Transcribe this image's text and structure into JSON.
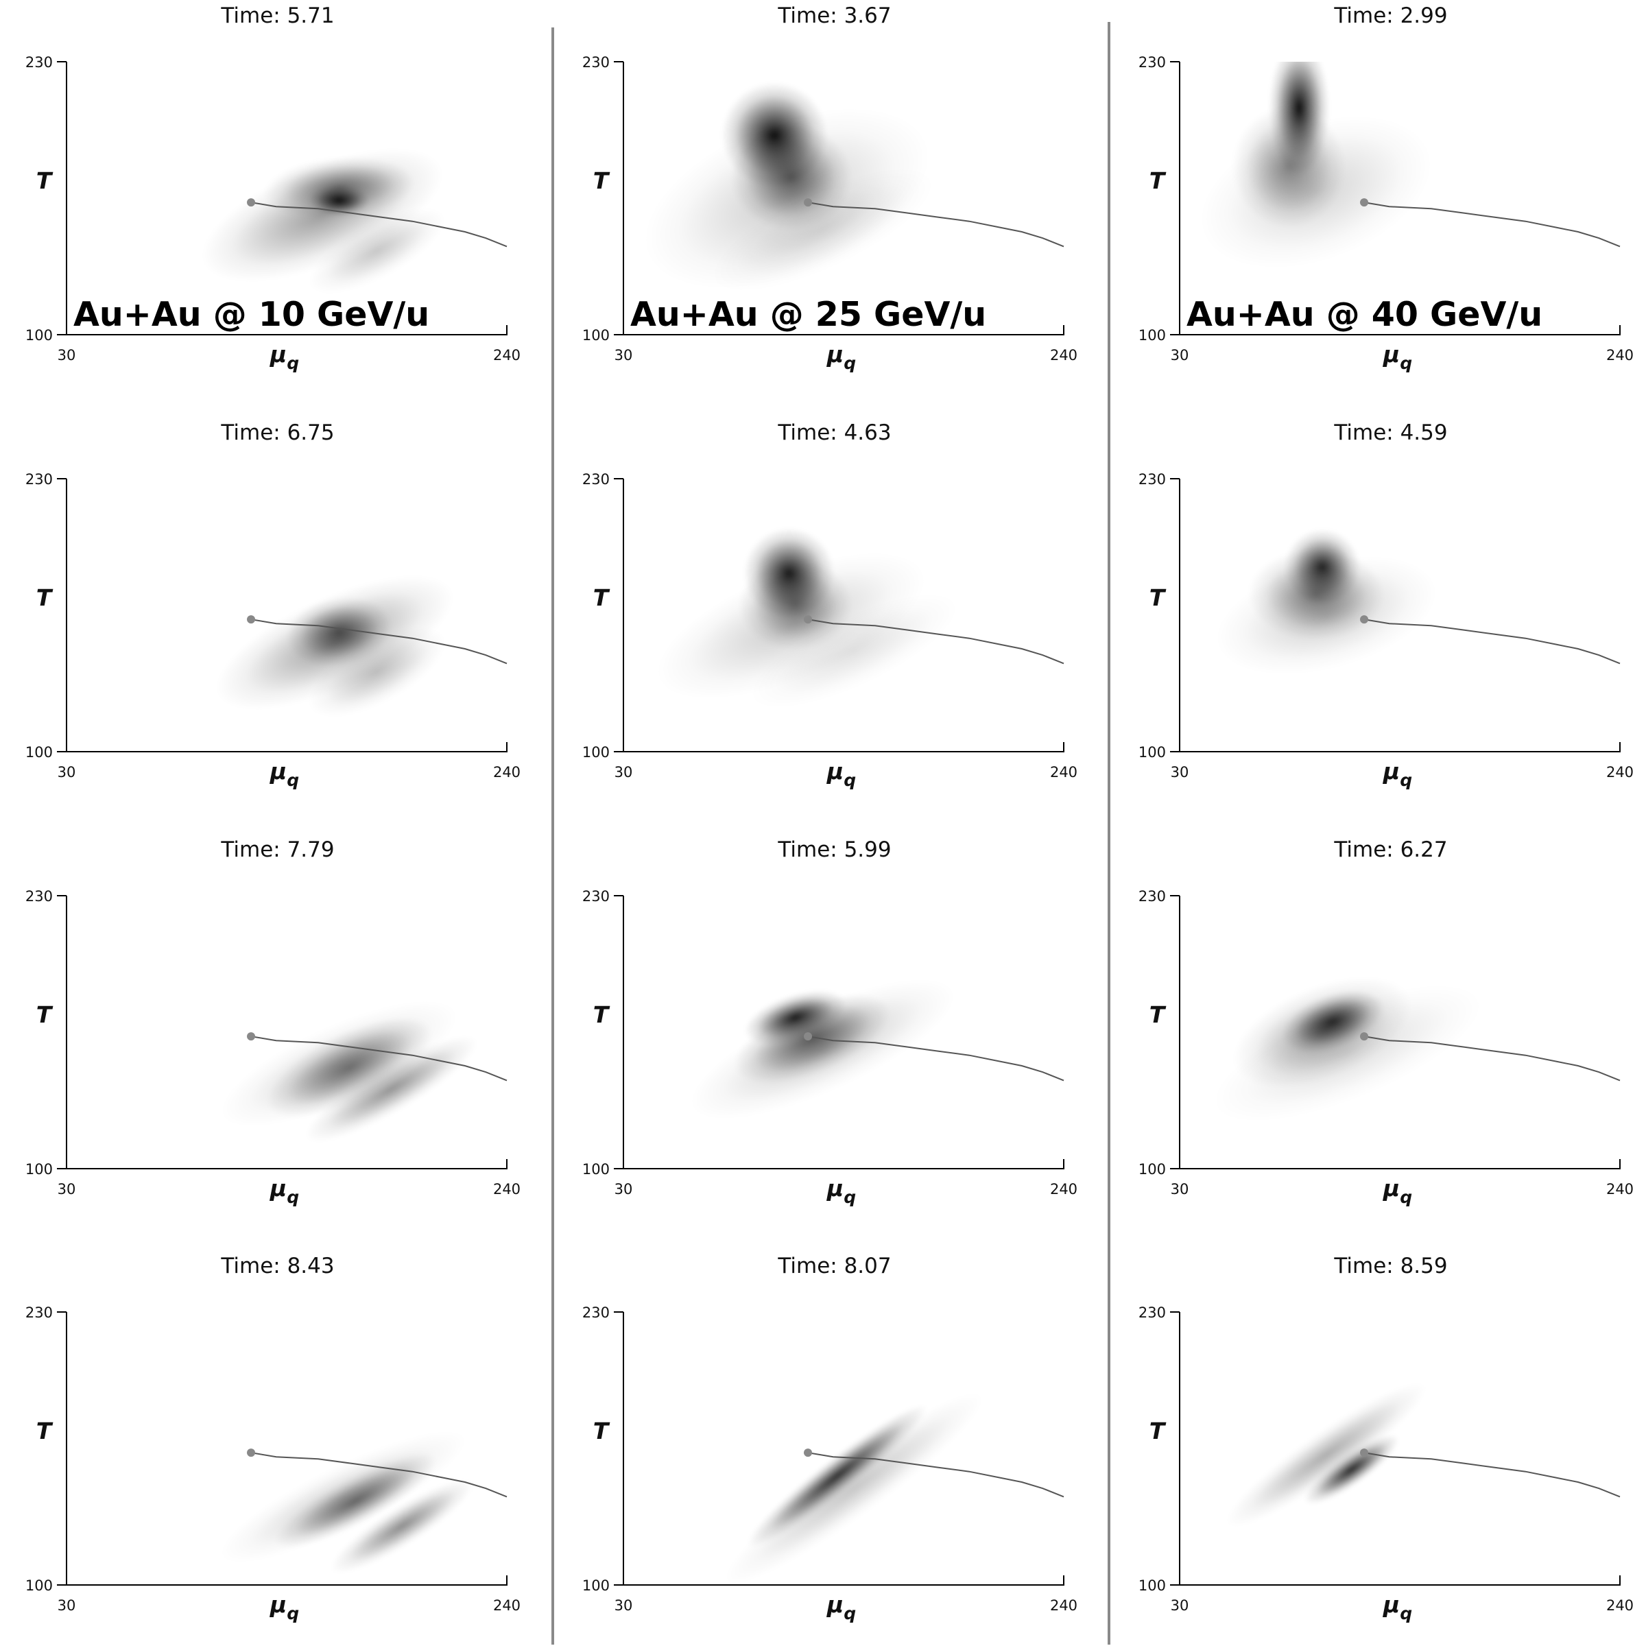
{
  "chart_data": {
    "type": "heatmap",
    "grid": {
      "rows": 4,
      "columns": 3
    },
    "x_axis": {
      "label": "μ",
      "label_subscript": "q",
      "range": [
        30,
        240
      ],
      "tick_labels": [
        "30",
        "240"
      ]
    },
    "y_axis": {
      "label": "T",
      "range": [
        100,
        230
      ],
      "tick_labels": [
        "230",
        "100"
      ]
    },
    "title_prefix": "Time: ",
    "column_labels": [
      "Au+Au @ 10 GeV/u",
      "Au+Au @ 25 GeV/u",
      "Au+Au @ 40 GeV/u"
    ],
    "crossover_line": {
      "marker": {
        "mu": 118,
        "T": 163
      },
      "points": [
        [
          118,
          163
        ],
        [
          130,
          161
        ],
        [
          150,
          160
        ],
        [
          165,
          158
        ],
        [
          180,
          156
        ],
        [
          195,
          154
        ],
        [
          210,
          151
        ],
        [
          220,
          149
        ],
        [
          230,
          146
        ],
        [
          240,
          142
        ]
      ]
    },
    "panels": [
      {
        "row": 0,
        "col": 0,
        "time": "5.71",
        "blobs": [
          {
            "mu": 152,
            "T": 157,
            "smu": 34,
            "sT": 13,
            "rot": -22,
            "w": 0.38
          },
          {
            "mu": 160,
            "T": 170,
            "smu": 20,
            "sT": 8,
            "rot": -5,
            "w": 0.5
          },
          {
            "mu": 160,
            "T": 164,
            "smu": 8,
            "sT": 4,
            "rot": 0,
            "w": 0.9
          },
          {
            "mu": 178,
            "T": 140,
            "smu": 20,
            "sT": 7,
            "rot": -28,
            "w": 0.22
          }
        ]
      },
      {
        "row": 0,
        "col": 1,
        "time": "3.67",
        "blobs": [
          {
            "mu": 102,
            "T": 195,
            "smu": 14,
            "sT": 14,
            "rot": 0,
            "w": 0.95
          },
          {
            "mu": 110,
            "T": 175,
            "smu": 16,
            "sT": 14,
            "rot": 0,
            "w": 0.6
          },
          {
            "mu": 108,
            "T": 165,
            "smu": 40,
            "sT": 20,
            "rot": -22,
            "w": 0.2
          },
          {
            "mu": 125,
            "T": 150,
            "smu": 32,
            "sT": 10,
            "rot": -25,
            "w": 0.13
          }
        ]
      },
      {
        "row": 0,
        "col": 2,
        "time": "2.99",
        "blobs": [
          {
            "mu": 87,
            "T": 208,
            "smu": 8,
            "sT": 18,
            "rot": 0,
            "w": 0.95
          },
          {
            "mu": 82,
            "T": 180,
            "smu": 15,
            "sT": 16,
            "rot": 0,
            "w": 0.45
          },
          {
            "mu": 95,
            "T": 168,
            "smu": 32,
            "sT": 18,
            "rot": -20,
            "w": 0.17
          }
        ]
      },
      {
        "row": 1,
        "col": 0,
        "time": "6.75",
        "blobs": [
          {
            "mu": 160,
            "T": 157,
            "smu": 14,
            "sT": 9,
            "rot": -10,
            "w": 0.6
          },
          {
            "mu": 158,
            "T": 152,
            "smu": 34,
            "sT": 12,
            "rot": -24,
            "w": 0.38
          },
          {
            "mu": 178,
            "T": 138,
            "smu": 20,
            "sT": 8,
            "rot": -28,
            "w": 0.26
          }
        ]
      },
      {
        "row": 1,
        "col": 1,
        "time": "4.63",
        "blobs": [
          {
            "mu": 109,
            "T": 185,
            "smu": 12,
            "sT": 12,
            "rot": 0,
            "w": 0.9
          },
          {
            "mu": 112,
            "T": 170,
            "smu": 15,
            "sT": 12,
            "rot": 0,
            "w": 0.5
          },
          {
            "mu": 110,
            "T": 160,
            "smu": 38,
            "sT": 14,
            "rot": -22,
            "w": 0.2
          },
          {
            "mu": 140,
            "T": 148,
            "smu": 30,
            "sT": 9,
            "rot": -25,
            "w": 0.12
          }
        ]
      },
      {
        "row": 1,
        "col": 2,
        "time": "4.59",
        "blobs": [
          {
            "mu": 98,
            "T": 188,
            "smu": 10,
            "sT": 10,
            "rot": 0,
            "w": 0.85
          },
          {
            "mu": 95,
            "T": 175,
            "smu": 18,
            "sT": 12,
            "rot": 0,
            "w": 0.5
          },
          {
            "mu": 100,
            "T": 165,
            "smu": 30,
            "sT": 14,
            "rot": -15,
            "w": 0.2
          }
        ]
      },
      {
        "row": 2,
        "col": 0,
        "time": "7.79",
        "blobs": [
          {
            "mu": 165,
            "T": 148,
            "smu": 24,
            "sT": 9,
            "rot": -26,
            "w": 0.5
          },
          {
            "mu": 185,
            "T": 138,
            "smu": 26,
            "sT": 6,
            "rot": -30,
            "w": 0.42
          },
          {
            "mu": 160,
            "T": 150,
            "smu": 34,
            "sT": 10,
            "rot": -24,
            "w": 0.2
          }
        ]
      },
      {
        "row": 2,
        "col": 1,
        "time": "5.99",
        "blobs": [
          {
            "mu": 112,
            "T": 172,
            "smu": 14,
            "sT": 6,
            "rot": -18,
            "w": 0.9
          },
          {
            "mu": 120,
            "T": 162,
            "smu": 22,
            "sT": 9,
            "rot": -22,
            "w": 0.6
          },
          {
            "mu": 125,
            "T": 157,
            "smu": 38,
            "sT": 11,
            "rot": -24,
            "w": 0.22
          }
        ]
      },
      {
        "row": 2,
        "col": 2,
        "time": "6.27",
        "blobs": [
          {
            "mu": 103,
            "T": 170,
            "smu": 14,
            "sT": 7,
            "rot": -20,
            "w": 0.8
          },
          {
            "mu": 98,
            "T": 165,
            "smu": 25,
            "sT": 12,
            "rot": -22,
            "w": 0.38
          },
          {
            "mu": 110,
            "T": 155,
            "smu": 38,
            "sT": 12,
            "rot": -22,
            "w": 0.14
          }
        ]
      },
      {
        "row": 3,
        "col": 0,
        "time": "8.43",
        "blobs": [
          {
            "mu": 168,
            "T": 140,
            "smu": 24,
            "sT": 6,
            "rot": -28,
            "w": 0.55
          },
          {
            "mu": 190,
            "T": 128,
            "smu": 22,
            "sT": 5,
            "rot": -32,
            "w": 0.45
          },
          {
            "mu": 162,
            "T": 142,
            "smu": 36,
            "sT": 8,
            "rot": -26,
            "w": 0.2
          }
        ]
      },
      {
        "row": 3,
        "col": 1,
        "time": "8.07",
        "blobs": [
          {
            "mu": 132,
            "T": 152,
            "smu": 30,
            "sT": 4.5,
            "rot": -38,
            "w": 0.82
          },
          {
            "mu": 140,
            "T": 146,
            "smu": 42,
            "sT": 7,
            "rot": -36,
            "w": 0.22
          }
        ]
      },
      {
        "row": 3,
        "col": 2,
        "time": "8.59",
        "blobs": [
          {
            "mu": 112,
            "T": 155,
            "smu": 15,
            "sT": 4,
            "rot": -35,
            "w": 0.85
          },
          {
            "mu": 100,
            "T": 162,
            "smu": 32,
            "sT": 6,
            "rot": -35,
            "w": 0.32
          }
        ]
      }
    ]
  }
}
